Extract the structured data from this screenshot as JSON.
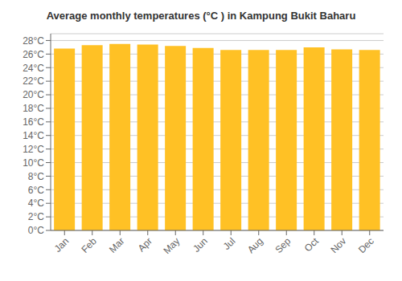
{
  "chart_data": {
    "type": "bar",
    "title": "Average monthly temperatures (°C ) in Kampung Bukit Baharu",
    "categories": [
      "Jan",
      "Feb",
      "Mar",
      "Apr",
      "May",
      "Jun",
      "Jul",
      "Aug",
      "Sep",
      "Oct",
      "Nov",
      "Dec"
    ],
    "values": [
      26.8,
      27.3,
      27.5,
      27.4,
      27.2,
      26.9,
      26.6,
      26.6,
      26.6,
      27.0,
      26.7,
      26.6
    ],
    "color": "#FFC125",
    "ylim": [
      0,
      29
    ],
    "yticks": [
      {
        "value": 0,
        "label": "0°C"
      },
      {
        "value": 2,
        "label": "2°C"
      },
      {
        "value": 4,
        "label": "4°C"
      },
      {
        "value": 6,
        "label": "6°C"
      },
      {
        "value": 8,
        "label": "8°C"
      },
      {
        "value": 10,
        "label": "10°C"
      },
      {
        "value": 12,
        "label": "12°C"
      },
      {
        "value": 14,
        "label": "14°C"
      },
      {
        "value": 16,
        "label": "16°C"
      },
      {
        "value": 18,
        "label": "18°C"
      },
      {
        "value": 20,
        "label": "20°C"
      },
      {
        "value": 22,
        "label": "22°C"
      },
      {
        "value": 24,
        "label": "24°C"
      },
      {
        "value": 26,
        "label": "26°C"
      },
      {
        "value": 28,
        "label": "28°C"
      }
    ],
    "grid": true
  }
}
